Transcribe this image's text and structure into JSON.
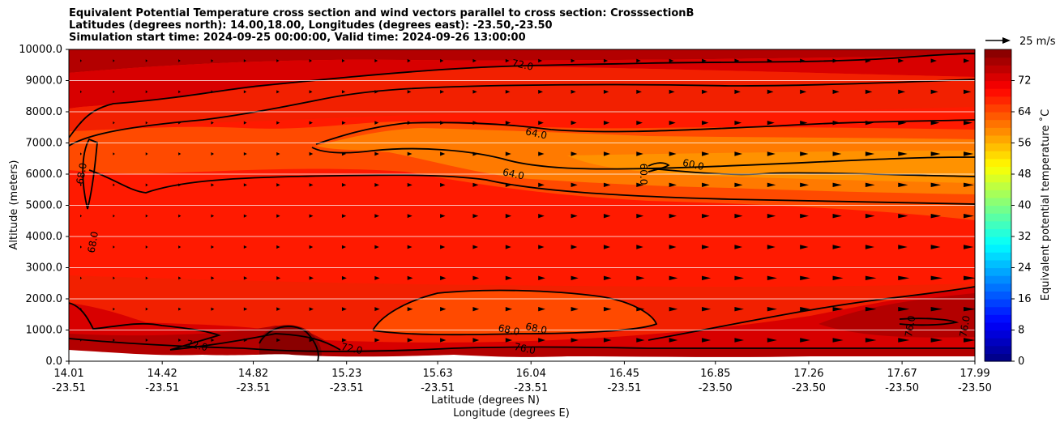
{
  "title_lines": [
    "Equivalent Potential Temperature cross section and wind vectors parallel to cross section: CrosssectionB",
    "Latitudes (degrees north): 14.00,18.00, Longitudes (degrees east): -23.50,-23.50",
    "Simulation start time: 2024-09-25 00:00:00, Valid time: 2024-09-26 13:00:00"
  ],
  "chart_data": {
    "type": "heatmap",
    "plot_kind": "filled contour cross section with contour lines and wind vectors",
    "ylabel": "Altitude (meters)",
    "xlabel_lines": [
      "Latitude (degrees N)",
      "Longitude (degrees E)"
    ],
    "ylim": [
      0,
      10000
    ],
    "y_ticks": [
      "0.0",
      "1000.0",
      "2000.0",
      "3000.0",
      "4000.0",
      "5000.0",
      "6000.0",
      "7000.0",
      "8000.0",
      "9000.0",
      "10000.0"
    ],
    "y_tick_values": [
      0,
      1000,
      2000,
      3000,
      4000,
      5000,
      6000,
      7000,
      8000,
      9000,
      10000
    ],
    "x_ticks": [
      {
        "lat": "14.01",
        "lon": "-23.51"
      },
      {
        "lat": "14.42",
        "lon": "-23.51"
      },
      {
        "lat": "14.82",
        "lon": "-23.51"
      },
      {
        "lat": "15.23",
        "lon": "-23.51"
      },
      {
        "lat": "15.63",
        "lon": "-23.51"
      },
      {
        "lat": "16.04",
        "lon": "-23.51"
      },
      {
        "lat": "16.45",
        "lon": "-23.51"
      },
      {
        "lat": "16.85",
        "lon": "-23.50"
      },
      {
        "lat": "17.26",
        "lon": "-23.50"
      },
      {
        "lat": "17.67",
        "lon": "-23.50"
      },
      {
        "lat": "17.99",
        "lon": "-23.50"
      }
    ],
    "x_tick_values": [
      14.01,
      14.42,
      14.82,
      15.23,
      15.63,
      16.04,
      16.45,
      16.85,
      17.26,
      17.67,
      17.99
    ],
    "xlim": [
      14.01,
      17.99
    ],
    "grid": "horizontal",
    "colorbar": {
      "label": "Equivalent potential temperature ˚C",
      "range": [
        0,
        80
      ],
      "ticks": [
        "0",
        "8",
        "16",
        "24",
        "32",
        "40",
        "48",
        "56",
        "64",
        "72"
      ],
      "tick_values": [
        0,
        8,
        16,
        24,
        32,
        40,
        48,
        56,
        64,
        72
      ],
      "colormap": "jet"
    },
    "contour_labels": [
      {
        "text": "72.0",
        "lat": 16.0,
        "alt": 9400
      },
      {
        "text": "64.0",
        "lat": 16.06,
        "alt": 7200
      },
      {
        "text": "64.0",
        "lat": 15.96,
        "alt": 5900
      },
      {
        "text": "60.0",
        "lat": 16.52,
        "alt": 6000
      },
      {
        "text": "60.0",
        "lat": 16.75,
        "alt": 6200
      },
      {
        "text": "68.0",
        "lat": 14.08,
        "alt": 6000
      },
      {
        "text": "68.0",
        "lat": 14.13,
        "alt": 3800
      },
      {
        "text": "68.0",
        "lat": 15.94,
        "alt": 900
      },
      {
        "text": "68.0",
        "lat": 16.06,
        "alt": 950
      },
      {
        "text": "72.0",
        "lat": 14.57,
        "alt": 400
      },
      {
        "text": "72.0",
        "lat": 15.25,
        "alt": 300
      },
      {
        "text": "76.0",
        "lat": 16.01,
        "alt": 300
      },
      {
        "text": "76.0",
        "lat": 17.72,
        "alt": 1100
      },
      {
        "text": "76.0",
        "lat": 17.96,
        "alt": 1100
      }
    ],
    "wind_reference": {
      "label": "25 m/s"
    }
  }
}
